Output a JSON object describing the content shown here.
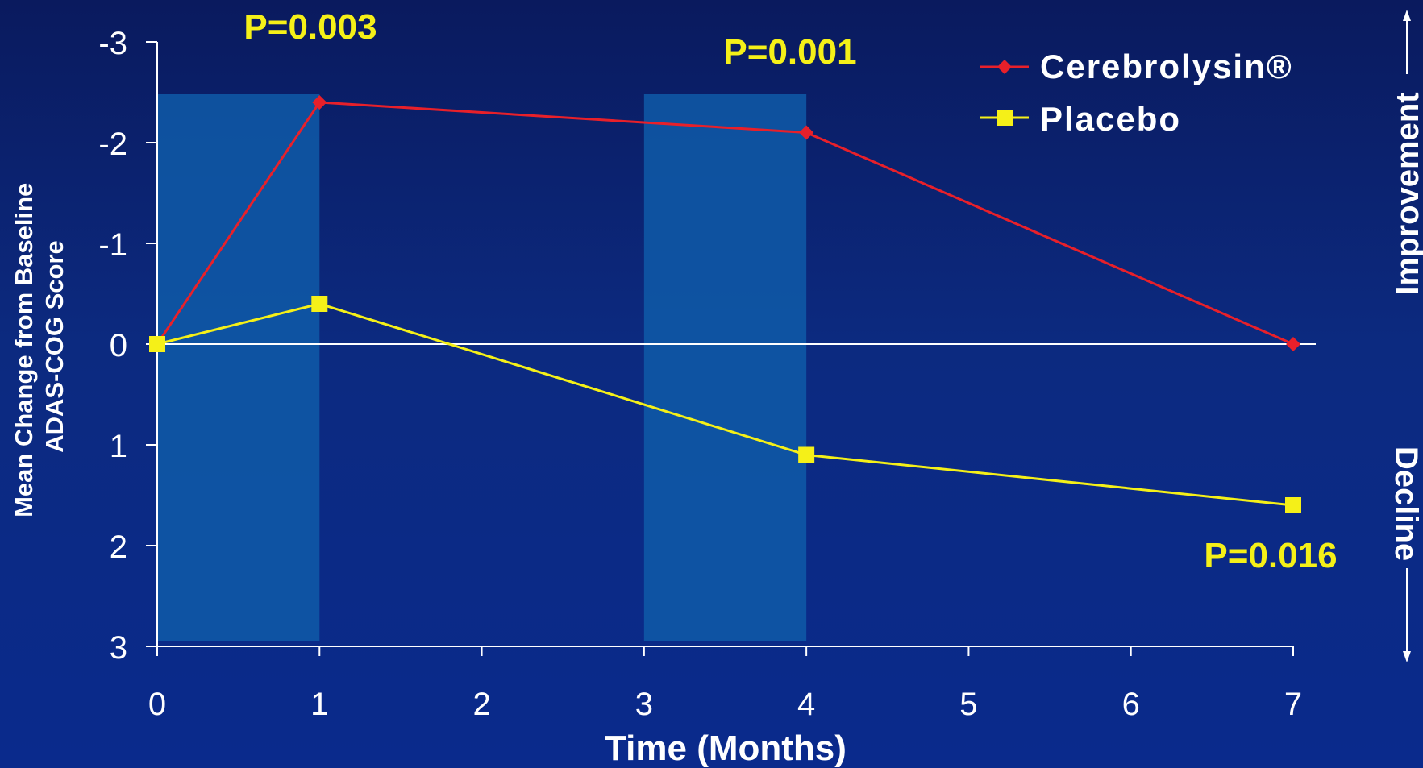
{
  "chart_data": {
    "type": "line",
    "x": [
      0,
      1,
      4,
      7
    ],
    "series": [
      {
        "name": "Cerebrolysin®",
        "values": [
          0,
          -2.4,
          -2.1,
          0
        ],
        "color": "#e8202a",
        "marker": "diamond"
      },
      {
        "name": "Placebo",
        "values": [
          0,
          -0.4,
          1.1,
          1.6
        ],
        "color": "#f5f018",
        "marker": "square"
      }
    ],
    "xlabel": "Time (Months)",
    "ylabel_lines": [
      "Mean Change from Baseline",
      "ADAS-COG Score"
    ],
    "xlim": [
      0,
      7
    ],
    "ylim": [
      3,
      -3
    ],
    "y_inverted": true,
    "xticks": [
      0,
      1,
      2,
      3,
      4,
      5,
      6,
      7
    ],
    "yticks": [
      -3,
      -2,
      -1,
      0,
      1,
      2,
      3
    ],
    "shaded_x_ranges": [
      [
        0,
        1
      ],
      [
        3,
        4
      ]
    ],
    "zero_reference_line": true,
    "legend_position": "top-right",
    "annotations": [
      {
        "text": "P=0.003",
        "color": "#f5f018"
      },
      {
        "text": "P=0.001",
        "color": "#f5f018"
      },
      {
        "text": "P=0.016",
        "color": "#f5f018"
      }
    ],
    "direction_labels": {
      "up": "Improvement",
      "down": "Decline"
    }
  }
}
